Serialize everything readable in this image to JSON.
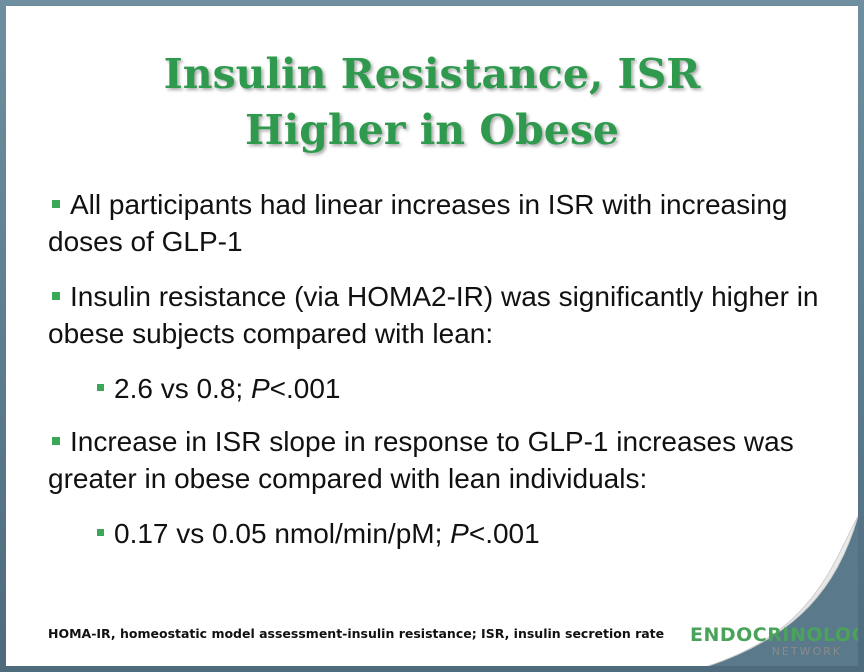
{
  "slide": {
    "title_line1": "Insulin Resistance, ISR",
    "title_line2": "Higher in Obese",
    "bullets": [
      {
        "text": "All participants had linear increases in ISR with increasing doses of GLP-1"
      },
      {
        "text": "Insulin resistance (via HOMA2-IR) was significantly higher in obese subjects compared with lean:"
      },
      {
        "sub_prefix": "2.6 vs 0.8; ",
        "sub_p": "P",
        "sub_suffix": "<.001"
      },
      {
        "text": "Increase in ISR slope in response to GLP-1 increases was greater in obese compared with lean individuals:"
      },
      {
        "sub_prefix": "0.17 vs 0.05 nmol/min/pM; ",
        "sub_p": "P",
        "sub_suffix": "<.001"
      }
    ],
    "footnote": "HOMA-IR, homeostatic model assessment-insulin resistance;  ISR, insulin secretion rate",
    "logo_line1": "ENDOCRINOLOGY",
    "logo_line2": "NETWORK"
  },
  "colors": {
    "title": "#2f9a4e",
    "bullet": "#3aa856",
    "frame": "#5a7a8c"
  }
}
